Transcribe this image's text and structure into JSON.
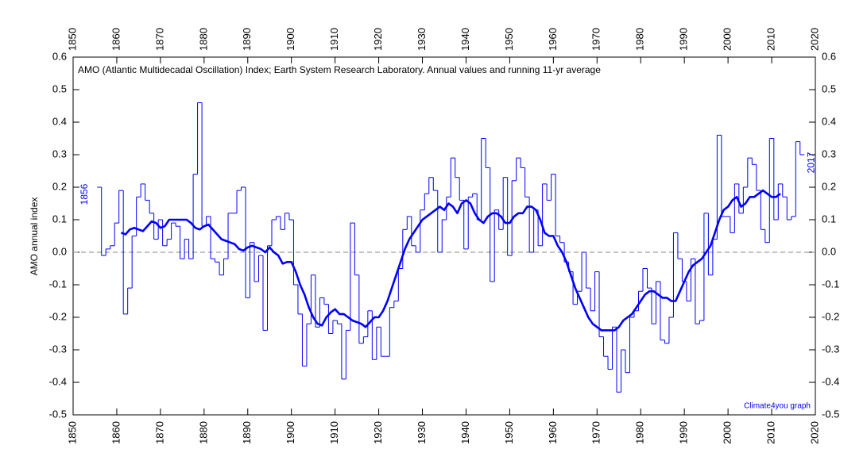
{
  "chart_data": {
    "type": "line",
    "title": "AMO (Atlantic Multidecadal Oscillation) Index; Earth System Research Laboratory. Annual values and running 11-yr average",
    "ylabel": "AMO annual index",
    "annotations": [
      {
        "text": "1856",
        "x": 1856
      },
      {
        "text": "2017",
        "x": 2017
      }
    ],
    "credit": "Climate4you graph",
    "xlim": [
      1850,
      2020
    ],
    "xticks": [
      1850,
      1860,
      1870,
      1880,
      1890,
      1900,
      1910,
      1920,
      1930,
      1940,
      1950,
      1960,
      1970,
      1980,
      1990,
      2000,
      2010,
      2020
    ],
    "ylim": [
      -0.5,
      0.6
    ],
    "yticks": [
      0.6,
      0.5,
      0.4,
      0.3,
      0.2,
      0.1,
      {
        "value": 0,
        "label": "0.0"
      },
      -0.1,
      -0.2,
      -0.3,
      -0.4,
      -0.5
    ],
    "hline": 0,
    "series": [
      {
        "color": "#0000ff",
        "drawstyle": "steps",
        "x": [
          1856,
          1857,
          1858,
          1859,
          1860,
          1861,
          1862,
          1863,
          1864,
          1865,
          1866,
          1867,
          1868,
          1869,
          1870,
          1871,
          1872,
          1873,
          1874,
          1875,
          1876,
          1877,
          1878,
          1879,
          1880,
          1881,
          1882,
          1883,
          1884,
          1885,
          1886,
          1887,
          1888,
          1889,
          1890,
          1891,
          1892,
          1893,
          1894,
          1895,
          1896,
          1897,
          1898,
          1899,
          1900,
          1901,
          1902,
          1903,
          1904,
          1905,
          1906,
          1907,
          1908,
          1909,
          1910,
          1911,
          1912,
          1913,
          1914,
          1915,
          1916,
          1917,
          1918,
          1919,
          1920,
          1921,
          1922,
          1923,
          1924,
          1925,
          1926,
          1927,
          1928,
          1929,
          1930,
          1931,
          1932,
          1933,
          1934,
          1935,
          1936,
          1937,
          1938,
          1939,
          1940,
          1941,
          1942,
          1943,
          1944,
          1945,
          1946,
          1947,
          1948,
          1949,
          1950,
          1951,
          1952,
          1953,
          1954,
          1955,
          1956,
          1957,
          1958,
          1959,
          1960,
          1961,
          1962,
          1963,
          1964,
          1965,
          1966,
          1967,
          1968,
          1969,
          1970,
          1971,
          1972,
          1973,
          1974,
          1975,
          1976,
          1977,
          1978,
          1979,
          1980,
          1981,
          1982,
          1983,
          1984,
          1985,
          1986,
          1987,
          1988,
          1989,
          1990,
          1991,
          1992,
          1993,
          1994,
          1995,
          1996,
          1997,
          1998,
          1999,
          2000,
          2001,
          2002,
          2003,
          2004,
          2005,
          2006,
          2007,
          2008,
          2009,
          2010,
          2011,
          2012,
          2013,
          2014,
          2015,
          2016,
          2017
        ],
        "values": [
          0.2,
          -0.01,
          0.01,
          0.02,
          0.09,
          0.19,
          -0.19,
          -0.11,
          0.05,
          0.17,
          0.21,
          0.16,
          0.12,
          0.04,
          0.1,
          0.02,
          0.04,
          0.09,
          0.08,
          -0.02,
          0.04,
          -0.02,
          0.24,
          0.46,
          0.08,
          0.11,
          -0.02,
          -0.03,
          -0.07,
          -0.02,
          0.12,
          0.12,
          0.19,
          0.2,
          -0.14,
          0.03,
          -0.09,
          -0.01,
          -0.24,
          0.02,
          0.1,
          0.11,
          0.07,
          0.12,
          0.1,
          -0.1,
          -0.19,
          -0.35,
          -0.22,
          -0.07,
          -0.23,
          -0.14,
          -0.16,
          -0.25,
          -0.21,
          -0.22,
          -0.39,
          -0.24,
          0.09,
          -0.07,
          -0.28,
          -0.26,
          -0.18,
          -0.33,
          -0.23,
          -0.32,
          -0.32,
          -0.17,
          -0.15,
          -0.05,
          0.07,
          0.11,
          0.02,
          0.0,
          0.13,
          0.18,
          0.23,
          0.19,
          0.0,
          0.1,
          0.17,
          0.29,
          0.23,
          0.16,
          0.01,
          0.17,
          0.18,
          0.1,
          0.35,
          0.26,
          -0.09,
          0.13,
          0.07,
          0.23,
          -0.01,
          0.22,
          0.29,
          0.26,
          0.17,
          0.0,
          0.13,
          0.02,
          0.21,
          0.16,
          0.24,
          0.05,
          0.03,
          -0.03,
          -0.06,
          -0.16,
          -0.12,
          0.0,
          -0.11,
          -0.18,
          -0.06,
          -0.26,
          -0.32,
          -0.36,
          -0.23,
          -0.43,
          -0.3,
          -0.37,
          -0.2,
          -0.18,
          -0.12,
          -0.05,
          -0.11,
          -0.22,
          -0.09,
          -0.27,
          -0.28,
          -0.2,
          0.06,
          -0.02,
          -0.09,
          -0.15,
          -0.02,
          -0.22,
          -0.21,
          0.12,
          -0.07,
          0.04,
          0.36,
          0.11,
          0.11,
          0.06,
          0.21,
          0.12,
          0.2,
          0.29,
          0.27,
          0.19,
          0.07,
          0.03,
          0.35,
          0.1,
          0.21,
          0.17,
          0.1,
          0.11,
          0.34,
          0.3
        ]
      },
      {
        "color": "#0000ff",
        "drawstyle": "line",
        "x": [
          1861,
          1862,
          1863,
          1864,
          1865,
          1866,
          1867,
          1868,
          1869,
          1870,
          1871,
          1872,
          1873,
          1874,
          1875,
          1876,
          1877,
          1878,
          1879,
          1880,
          1881,
          1882,
          1883,
          1884,
          1885,
          1886,
          1887,
          1888,
          1889,
          1890,
          1891,
          1892,
          1893,
          1894,
          1895,
          1896,
          1897,
          1898,
          1899,
          1900,
          1901,
          1902,
          1903,
          1904,
          1905,
          1906,
          1907,
          1908,
          1909,
          1910,
          1911,
          1912,
          1913,
          1914,
          1915,
          1916,
          1917,
          1918,
          1919,
          1920,
          1921,
          1922,
          1923,
          1924,
          1925,
          1926,
          1927,
          1928,
          1929,
          1930,
          1931,
          1932,
          1933,
          1934,
          1935,
          1936,
          1937,
          1938,
          1939,
          1940,
          1941,
          1942,
          1943,
          1944,
          1945,
          1946,
          1947,
          1948,
          1949,
          1950,
          1951,
          1952,
          1953,
          1954,
          1955,
          1956,
          1957,
          1958,
          1959,
          1960,
          1961,
          1962,
          1963,
          1964,
          1965,
          1966,
          1967,
          1968,
          1969,
          1970,
          1971,
          1972,
          1973,
          1974,
          1975,
          1976,
          1977,
          1978,
          1979,
          1980,
          1981,
          1982,
          1983,
          1984,
          1985,
          1986,
          1987,
          1988,
          1989,
          1990,
          1991,
          1992,
          1993,
          1994,
          1995,
          1996,
          1997,
          1998,
          1999,
          2000,
          2001,
          2002,
          2003,
          2004,
          2005,
          2006,
          2007,
          2008,
          2009,
          2010,
          2011,
          2012
        ],
        "values": [
          0.06,
          0.055,
          0.07,
          0.075,
          0.07,
          0.065,
          0.08,
          0.095,
          0.09,
          0.075,
          0.08,
          0.1,
          0.1,
          0.1,
          0.1,
          0.1,
          0.09,
          0.075,
          0.07,
          0.08,
          0.085,
          0.07,
          0.055,
          0.04,
          0.035,
          0.03,
          0.025,
          0.01,
          0.005,
          0.015,
          0.02,
          0.015,
          0.01,
          0.0,
          0.015,
          0.0,
          -0.01,
          -0.035,
          -0.03,
          -0.03,
          -0.06,
          -0.1,
          -0.13,
          -0.17,
          -0.2,
          -0.22,
          -0.225,
          -0.2,
          -0.185,
          -0.175,
          -0.19,
          -0.19,
          -0.2,
          -0.21,
          -0.215,
          -0.22,
          -0.23,
          -0.215,
          -0.2,
          -0.2,
          -0.18,
          -0.15,
          -0.11,
          -0.07,
          -0.03,
          0.01,
          0.04,
          0.06,
          0.08,
          0.1,
          0.11,
          0.12,
          0.13,
          0.14,
          0.13,
          0.15,
          0.14,
          0.12,
          0.15,
          0.16,
          0.15,
          0.12,
          0.1,
          0.09,
          0.11,
          0.12,
          0.12,
          0.11,
          0.09,
          0.09,
          0.11,
          0.12,
          0.12,
          0.14,
          0.14,
          0.13,
          0.1,
          0.06,
          0.05,
          0.05,
          0.02,
          0.0,
          -0.03,
          -0.07,
          -0.11,
          -0.14,
          -0.17,
          -0.2,
          -0.22,
          -0.23,
          -0.24,
          -0.24,
          -0.24,
          -0.24,
          -0.23,
          -0.21,
          -0.2,
          -0.19,
          -0.17,
          -0.15,
          -0.13,
          -0.12,
          -0.12,
          -0.13,
          -0.14,
          -0.14,
          -0.15,
          -0.15,
          -0.12,
          -0.09,
          -0.06,
          -0.04,
          -0.03,
          -0.02,
          0.0,
          0.02,
          0.06,
          0.1,
          0.13,
          0.14,
          0.16,
          0.17,
          0.14,
          0.15,
          0.17,
          0.17,
          0.18,
          0.19,
          0.18,
          0.17,
          0.17,
          0.18
        ]
      }
    ]
  }
}
